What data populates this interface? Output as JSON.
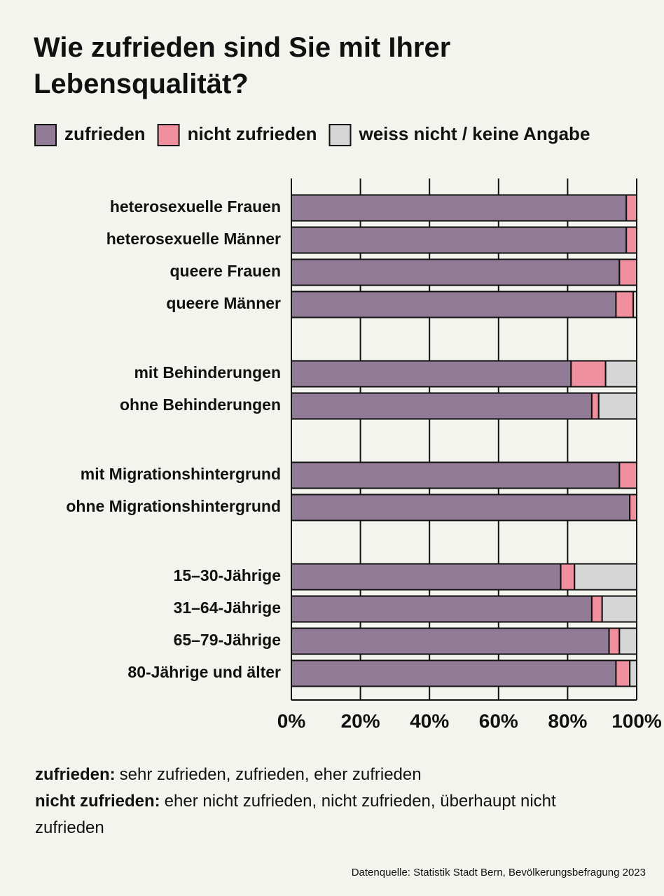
{
  "chart_data": {
    "type": "stacked-bar-horizontal",
    "title": "Wie zufrieden sind Sie mit Ihrer Lebensqualität?",
    "categories": [
      "heterosexuelle Frauen",
      "heterosexuelle Männer",
      "queere Frauen",
      "queere Männer",
      null,
      "mit Behinderungen",
      "ohne Behinderungen",
      null,
      "mit Migrationshintergrund",
      "ohne Migrationshintergrund",
      null,
      "15–30-Jährige",
      "31–64-Jährige",
      "65–79-Jährige",
      "80-Jährige und älter"
    ],
    "series": [
      {
        "name": "zufrieden",
        "color": "#927b97",
        "values": [
          97,
          97,
          95,
          94,
          null,
          81,
          87,
          null,
          95,
          98,
          null,
          78,
          87,
          92,
          94
        ]
      },
      {
        "name": "nicht zufrieden",
        "color": "#f0909f",
        "values": [
          3,
          3,
          5,
          5,
          null,
          10,
          2,
          null,
          5,
          2,
          null,
          4,
          3,
          3,
          4
        ]
      },
      {
        "name": "weiss nicht / keine Angabe",
        "color": "#d6d6d6",
        "values": [
          0,
          0,
          0,
          1,
          null,
          9,
          11,
          null,
          0,
          0,
          null,
          18,
          10,
          5,
          2
        ]
      }
    ],
    "xlim": [
      0,
      100
    ],
    "xticks": [
      {
        "value": 0,
        "label": "0%"
      },
      {
        "value": 20,
        "label": "20%"
      },
      {
        "value": 40,
        "label": "40%"
      },
      {
        "value": 60,
        "label": "60%"
      },
      {
        "value": 80,
        "label": "80%"
      },
      {
        "value": 100,
        "label": "100%"
      }
    ],
    "grid": true,
    "legend": "top",
    "notes": [
      {
        "term": "zufrieden:",
        "text": "sehr zufrieden, zufrieden, eher zufrieden"
      },
      {
        "term": "nicht zufrieden:",
        "text": "eher nicht zufrieden, nicht zufrieden, überhaupt nicht zufrieden"
      }
    ],
    "source": "Datenquelle: Statistik Stadt Bern, Bevölkerungsbefragung 2023"
  }
}
